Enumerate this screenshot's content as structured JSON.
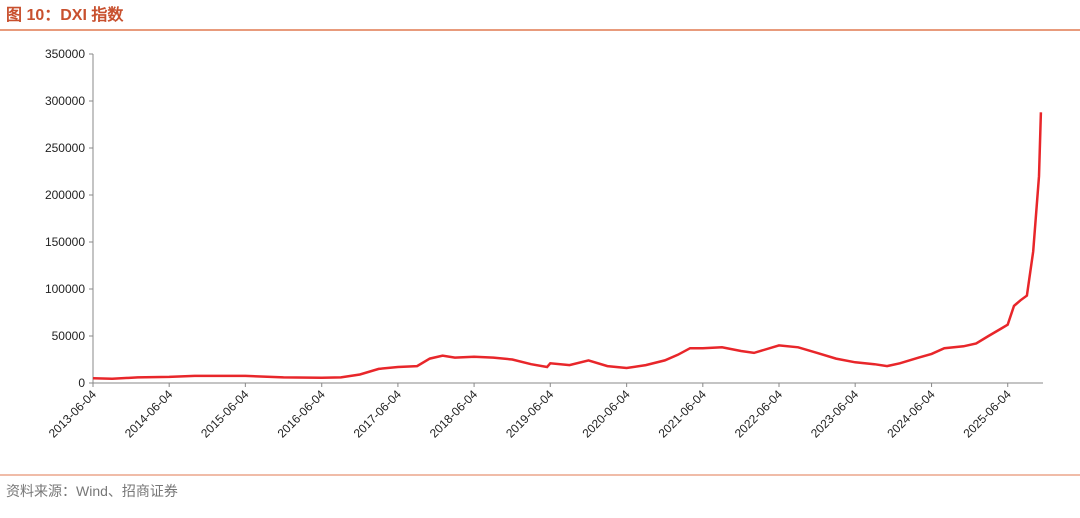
{
  "title": "图 10：DXI 指数",
  "source": "资料来源：Wind、招商证券",
  "chart_data": {
    "type": "line",
    "x": [
      "2013-06-04",
      "2013-09-04",
      "2014-01-04",
      "2014-06-04",
      "2014-10-04",
      "2015-01-04",
      "2015-06-04",
      "2015-12-04",
      "2016-06-04",
      "2016-09-04",
      "2016-12-04",
      "2017-03-04",
      "2017-06-04",
      "2017-09-04",
      "2017-11-04",
      "2018-01-04",
      "2018-03-04",
      "2018-06-04",
      "2018-09-04",
      "2018-12-04",
      "2019-03-04",
      "2019-05-20",
      "2019-06-04",
      "2019-09-04",
      "2019-12-04",
      "2020-03-04",
      "2020-06-04",
      "2020-09-04",
      "2020-12-04",
      "2021-02-04",
      "2021-04-04",
      "2021-06-04",
      "2021-09-04",
      "2021-12-04",
      "2022-02-04",
      "2022-06-04",
      "2022-09-04",
      "2022-12-04",
      "2023-03-04",
      "2023-06-04",
      "2023-09-04",
      "2023-11-04",
      "2024-01-04",
      "2024-04-04",
      "2024-06-04",
      "2024-08-04",
      "2024-11-04",
      "2025-01-04",
      "2025-03-04",
      "2025-05-04",
      "2025-06-04",
      "2025-07-04",
      "2025-08-04",
      "2025-09-04",
      "2025-10-04",
      "2025-11-01",
      "2025-11-10"
    ],
    "series": [
      {
        "name": "DXI",
        "color": "#e8262a",
        "values": [
          5000,
          4500,
          6000,
          6500,
          7500,
          7500,
          7500,
          6000,
          5500,
          6000,
          9000,
          15000,
          17000,
          18000,
          26000,
          29000,
          27000,
          28000,
          27000,
          25000,
          20000,
          17000,
          21000,
          19000,
          24000,
          18000,
          16000,
          19000,
          24000,
          30000,
          37000,
          37000,
          38000,
          34000,
          32000,
          40000,
          38000,
          32000,
          26000,
          22000,
          20000,
          18000,
          21000,
          27000,
          31000,
          37000,
          39000,
          42000,
          50000,
          58000,
          62000,
          82000,
          88000,
          93000,
          140000,
          220000,
          288000
        ]
      }
    ],
    "xlim": [
      "2013-06-04",
      "2025-11-20"
    ],
    "xticks": [
      "2013-06-04",
      "2014-06-04",
      "2015-06-04",
      "2016-06-04",
      "2017-06-04",
      "2018-06-04",
      "2019-06-04",
      "2020-06-04",
      "2021-06-04",
      "2022-06-04",
      "2023-06-04",
      "2024-06-04",
      "2025-06-04"
    ],
    "ylim": [
      0,
      350000
    ],
    "yticks": [
      0,
      50000,
      100000,
      150000,
      200000,
      250000,
      300000,
      350000
    ]
  }
}
